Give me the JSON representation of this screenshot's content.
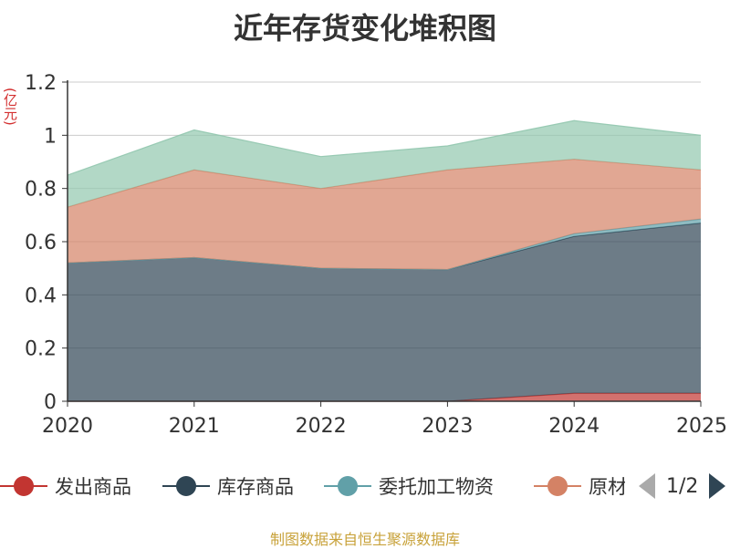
{
  "chart_data": {
    "type": "area",
    "title": "近年存货变化堆积图",
    "unit": "(亿元)",
    "x": [
      "2020",
      "2021",
      "2022",
      "2023",
      "2024",
      "2025"
    ],
    "y_ticks": [
      "0",
      "0.2",
      "0.4",
      "0.6",
      "0.8",
      "1",
      "1.2"
    ],
    "ylim": [
      0,
      1.2
    ],
    "stacked": true,
    "grid": true,
    "legend_position": "bottom",
    "series": [
      {
        "name": "发出商品",
        "color": "#c23531",
        "values": [
          0,
          0,
          0,
          0,
          0.03,
          0.03
        ]
      },
      {
        "name": "库存商品",
        "color": "#2f4554",
        "values": [
          0.52,
          0.54,
          0.5,
          0.495,
          0.59,
          0.64
        ]
      },
      {
        "name": "委托加工物资",
        "color": "#61a0a8",
        "values": [
          0,
          0,
          0,
          0,
          0.01,
          0.015
        ]
      },
      {
        "name": "原材料",
        "color": "#d48265",
        "values": [
          0.21,
          0.33,
          0.3,
          0.375,
          0.28,
          0.185
        ]
      },
      {
        "name": "",
        "color": "#91c7ae",
        "values": [
          0.12,
          0.15,
          0.12,
          0.09,
          0.145,
          0.13
        ]
      }
    ]
  },
  "legend": {
    "items": [
      {
        "label": "发出商品",
        "color": "#c23531"
      },
      {
        "label": "库存商品",
        "color": "#2f4554"
      },
      {
        "label": "委托加工物资",
        "color": "#61a0a8"
      },
      {
        "label": "原材料",
        "color": "#d48265"
      }
    ],
    "page": "1/2"
  },
  "footer": "制图数据来自恒生聚源数据库"
}
